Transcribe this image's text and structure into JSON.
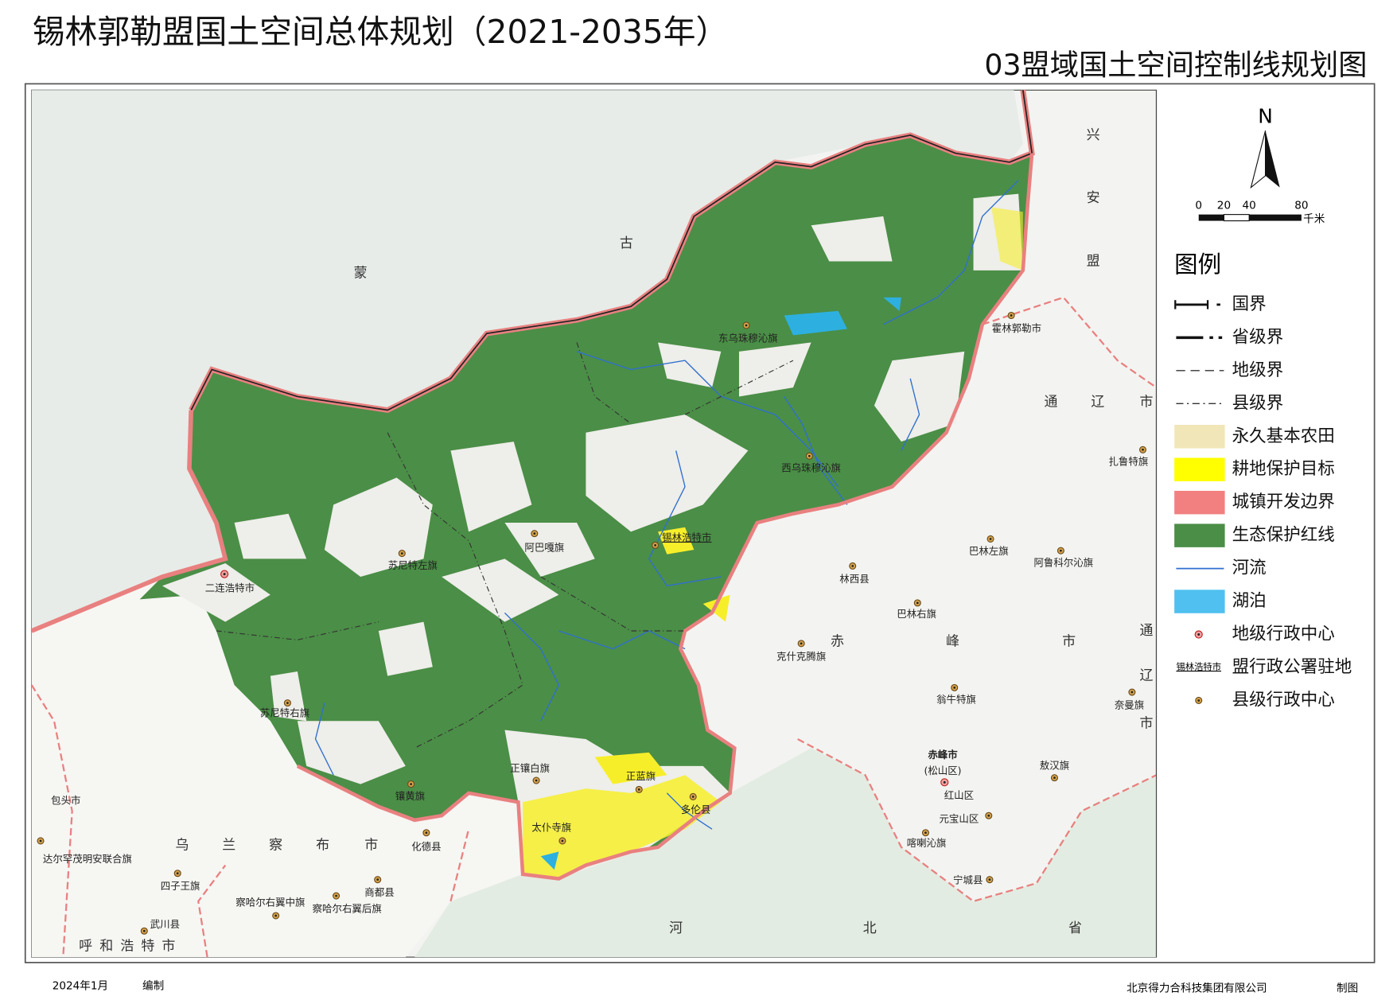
{
  "header": {
    "title": "锡林郭勒盟国土空间总体规划（2021-2035年）",
    "subtitle": "03盟域国土空间控制线规划图"
  },
  "north": "N",
  "scale": {
    "ticks": [
      "0",
      "20",
      "40",
      "80"
    ],
    "unit": "千米"
  },
  "legend": {
    "title": "图例",
    "items": [
      "国界",
      "省级界",
      "地级界",
      "县级界",
      "永久基本农田",
      "耕地保护目标",
      "城镇开发边界",
      "生态保护红线",
      "河流",
      "湖泊",
      "地级行政中心",
      "盟行政公署驻地",
      "县级行政中心"
    ],
    "seat_sample": "锡林浩特市"
  },
  "places": [
    "东乌珠穆沁旗",
    "霍林郭勒市",
    "西乌珠穆沁旗",
    "扎鲁特旗",
    "锡林浩特市",
    "阿巴嘎旗",
    "苏尼特左旗",
    "二连浩特市",
    "巴林左旗",
    "阿鲁科尔沁旗",
    "林西县",
    "巴林右旗",
    "克什克腾旗",
    "翁牛特旗",
    "奈曼旗",
    "苏尼特右旗",
    "正镶白旗",
    "正蓝旗",
    "多伦县",
    "镶黄旗",
    "太仆寺旗",
    "化德县",
    "敖汉旗",
    "赤峰市",
    "(松山区)",
    "红山区",
    "元宝山区",
    "喀喇沁旗",
    "宁城县",
    "包头市",
    "达尔罕茂明安联合旗",
    "四子王旗",
    "商都县",
    "察哈尔右翼中旗",
    "察哈尔右翼后旗",
    "武川县"
  ],
  "regions": [
    [
      "蒙",
      "古"
    ],
    [
      "兴",
      "安",
      "盟"
    ],
    [
      "通",
      "辽",
      "市"
    ],
    [
      "通",
      "辽",
      "市"
    ],
    [
      "赤",
      "峰",
      "市"
    ],
    [
      "乌",
      "兰",
      "察",
      "布",
      "市"
    ],
    [
      "河",
      "北",
      "省"
    ],
    [
      "呼",
      "和",
      "浩",
      "特",
      "市"
    ]
  ],
  "footer": {
    "date": "2024年1月",
    "compiled": "编制",
    "company": "北京得力合科技集团有限公司",
    "drawn": "制图"
  }
}
